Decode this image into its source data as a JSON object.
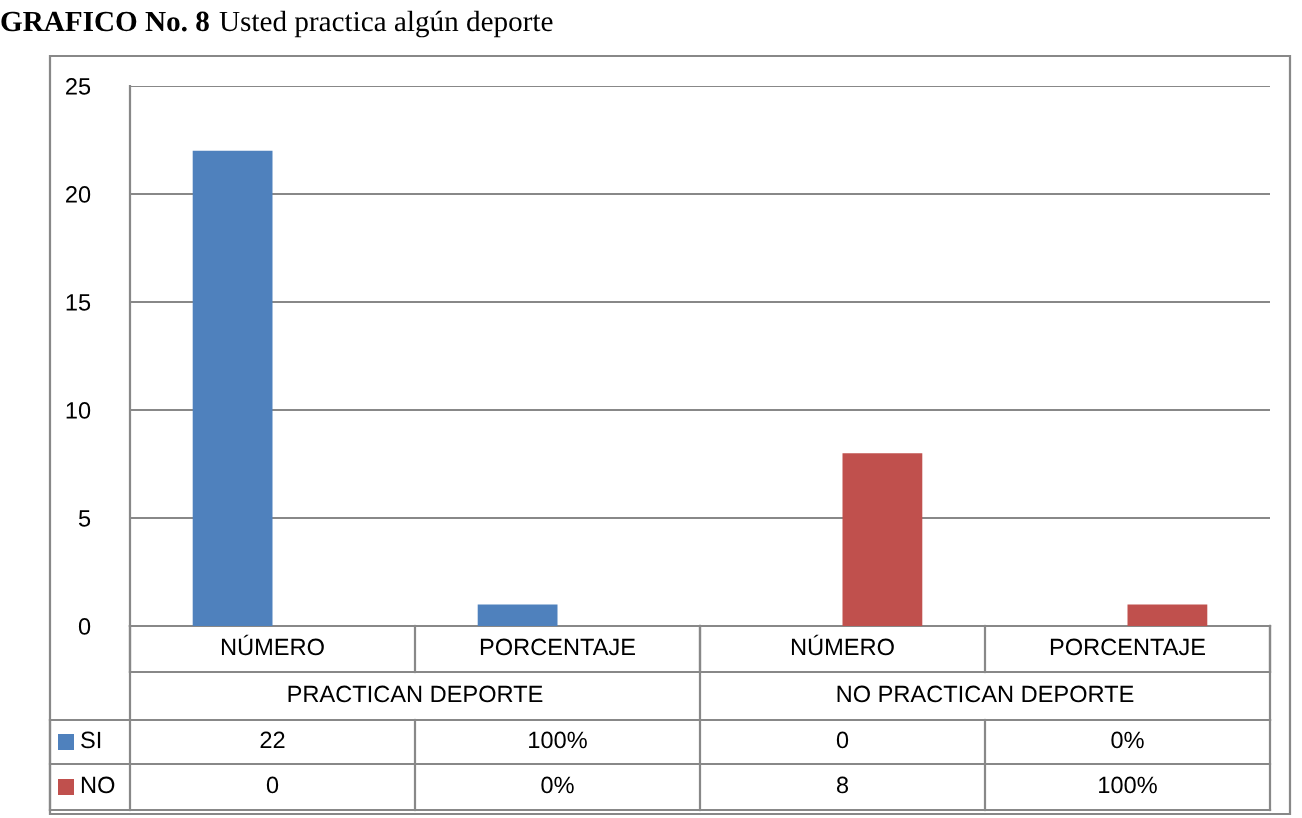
{
  "chart_data": {
    "type": "bar",
    "title": "GRAFICO No. 8",
    "subtitle": "Usted practica algún deporte",
    "categories": [
      "NÚMERO",
      "PORCENTAJE",
      "NÚMERO",
      "PORCENTAJE"
    ],
    "annotations": [
      "PRACTICAN DEPORTE",
      "NO PRACTICAN DEPORTE"
    ],
    "series": [
      {
        "name": "SI",
        "color": "#4f81bd",
        "values": [
          22,
          1,
          0,
          0
        ],
        "value_labels": [
          "22",
          "100%",
          "0",
          "0%"
        ]
      },
      {
        "name": "NO",
        "color": "#c0504d",
        "values": [
          0,
          0,
          8,
          1
        ],
        "value_labels": [
          "0",
          "0%",
          "8",
          "100%"
        ]
      }
    ],
    "ylim": [
      0,
      25
    ],
    "yticks": [
      0,
      5,
      10,
      15,
      20,
      25
    ],
    "grid": "y",
    "legend": "bottom left"
  }
}
